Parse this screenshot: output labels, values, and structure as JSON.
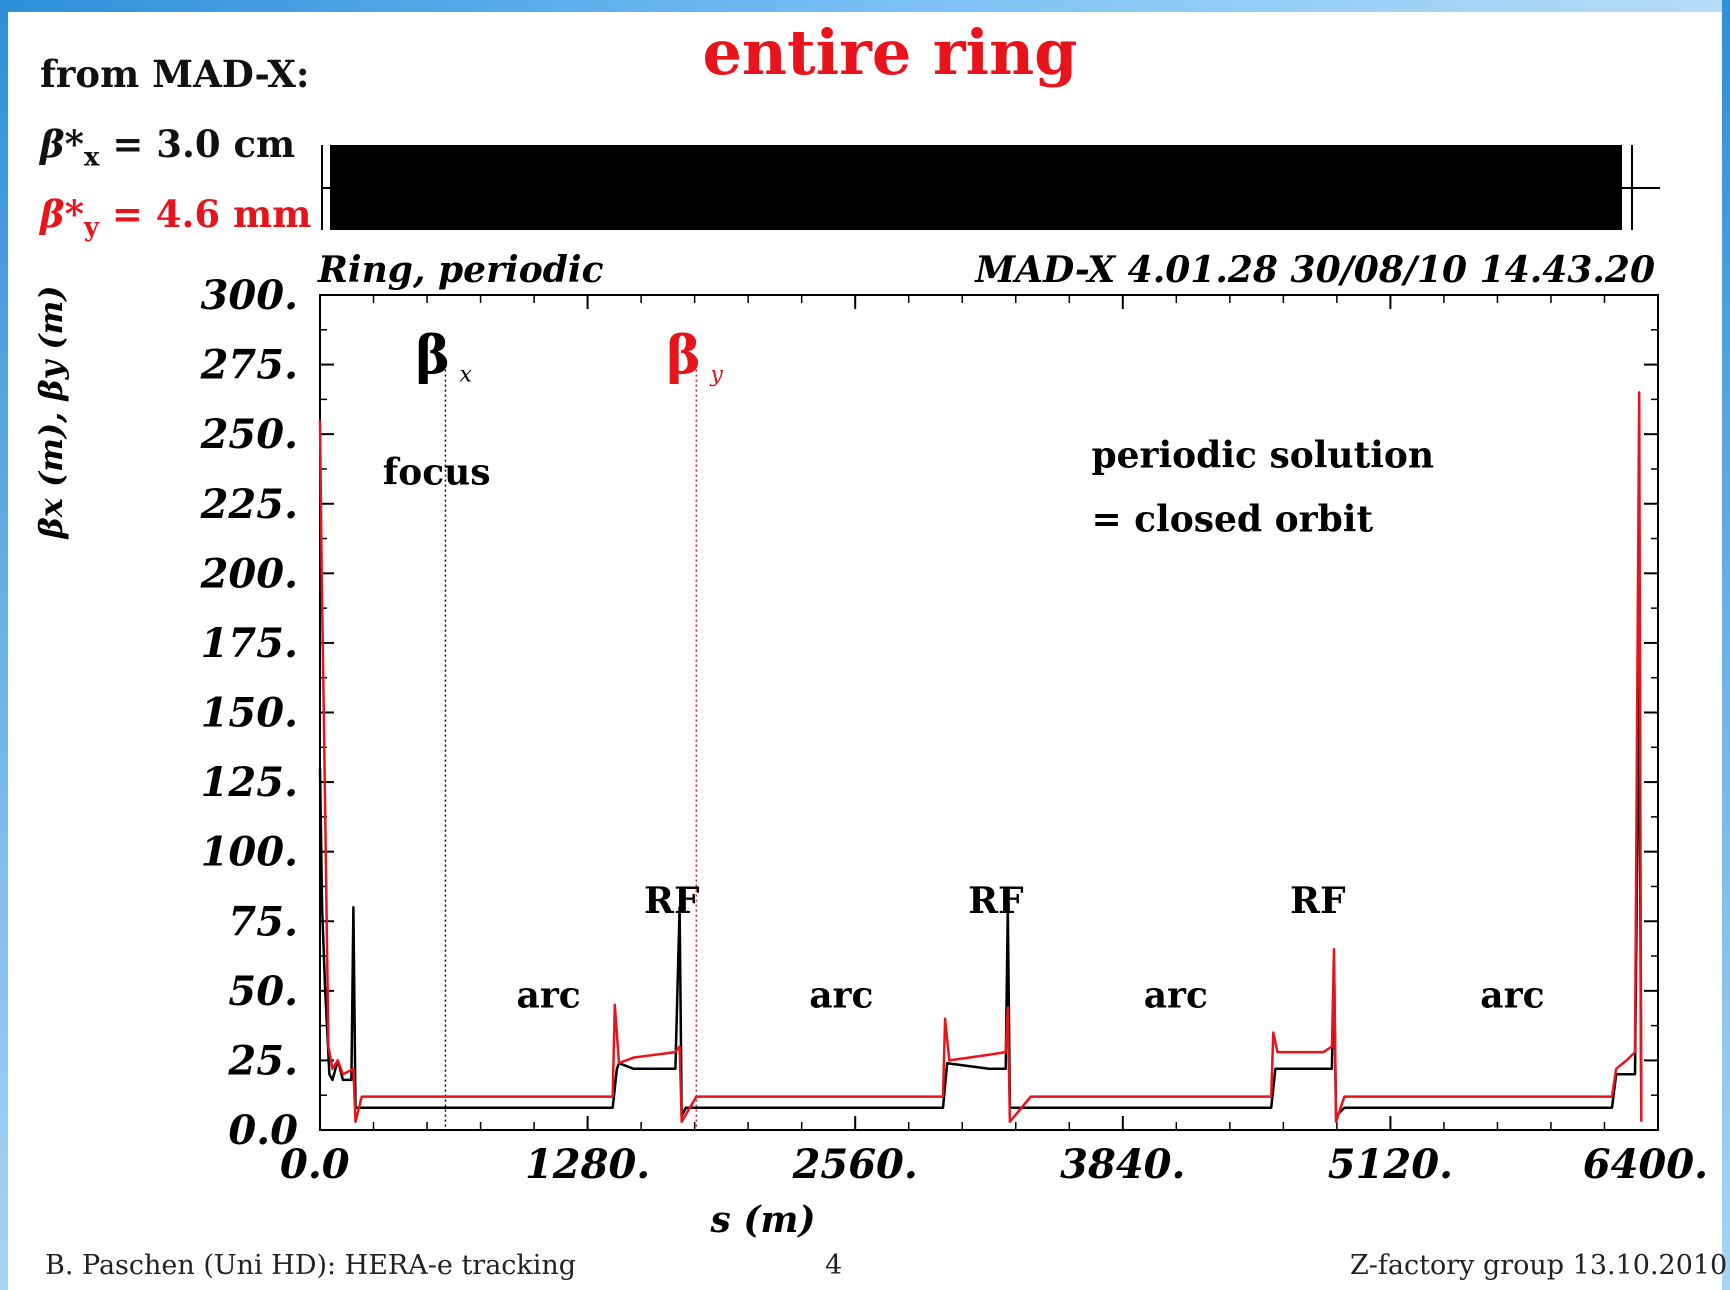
{
  "slide": {
    "title": "entire ring",
    "source_label": "from MAD-X:",
    "beta_x_label": "β*x = 3.0 cm",
    "beta_y_label": "β*y = 4.6 mm",
    "footer_left": "B. Paschen (Uni HD): HERA-e tracking",
    "footer_center": "4",
    "footer_right": "Z-factory group 13.10.2010",
    "colors": {
      "title": "#e8141c",
      "frame": "#2e8fd9"
    }
  },
  "chart_data": {
    "type": "line",
    "title": "Ring, periodic",
    "subtitle": "MAD-X 4.01.28  30/08/10 14.43.20",
    "xlabel": "s (m)",
    "ylabel": "βx (m), βy (m)",
    "xlim": [
      0,
      6400
    ],
    "ylim": [
      0,
      300
    ],
    "x_ticks": [
      "0.0",
      "1280.",
      "2560.",
      "3840.",
      "5120.",
      "6400."
    ],
    "y_ticks": [
      "0.0",
      "25.",
      "50.",
      "75.",
      "100.",
      "125.",
      "150.",
      "175.",
      "200.",
      "225.",
      "250.",
      "275.",
      "300."
    ],
    "grid": false,
    "series": [
      {
        "name": "βx",
        "color": "#000000",
        "x": [
          0,
          10,
          25,
          45,
          60,
          85,
          110,
          150,
          160,
          170,
          200,
          400,
          900,
          1400,
          1420,
          1430,
          1500,
          1700,
          1720,
          1730,
          1750,
          1800,
          2400,
          2980,
          3000,
          3200,
          3280,
          3290,
          3300,
          3350,
          4000,
          4550,
          4570,
          4800,
          4840,
          4850,
          4860,
          4900,
          5500,
          6180,
          6200,
          6290,
          6310,
          6320
        ],
        "y": [
          130,
          80,
          50,
          20,
          18,
          25,
          18,
          18,
          80,
          8,
          8,
          8,
          8,
          8,
          22,
          24,
          22,
          22,
          80,
          5,
          8,
          8,
          8,
          8,
          24,
          22,
          22,
          80,
          8,
          8,
          8,
          8,
          22,
          22,
          22,
          60,
          5,
          8,
          8,
          8,
          20,
          20,
          170,
          5
        ]
      },
      {
        "name": "βy",
        "color": "#e8141c",
        "x": [
          0,
          8,
          20,
          40,
          60,
          85,
          110,
          160,
          170,
          200,
          600,
          1000,
          1400,
          1410,
          1430,
          1500,
          1700,
          1720,
          1730,
          1800,
          2400,
          2980,
          2990,
          3010,
          3200,
          3280,
          3290,
          3300,
          3400,
          4000,
          4550,
          4560,
          4580,
          4800,
          4840,
          4850,
          4860,
          4900,
          5600,
          6180,
          6200,
          6250,
          6290,
          6310,
          6320
        ],
        "y": [
          255,
          200,
          140,
          30,
          22,
          25,
          20,
          22,
          3,
          12,
          12,
          12,
          12,
          45,
          24,
          26,
          28,
          30,
          3,
          12,
          12,
          12,
          40,
          25,
          27,
          28,
          44,
          3,
          12,
          12,
          12,
          35,
          28,
          28,
          30,
          65,
          3,
          12,
          12,
          12,
          22,
          25,
          28,
          265,
          3
        ]
      }
    ],
    "markers": [
      {
        "label": "β",
        "sub": "x",
        "color": "#000000",
        "x": 600
      },
      {
        "label": "β",
        "sub": "y",
        "color": "#e8141c",
        "x": 1800
      }
    ],
    "annotations": [
      {
        "text": "focus",
        "x": 300,
        "y": 232
      },
      {
        "text": "periodic solution",
        "x": 3690,
        "y": 238
      },
      {
        "text": "= closed orbit",
        "x": 3690,
        "y": 215
      },
      {
        "text": "RF",
        "x": 1550,
        "y": 78
      },
      {
        "text": "RF",
        "x": 3100,
        "y": 78
      },
      {
        "text": "RF",
        "x": 4640,
        "y": 78
      },
      {
        "text": "arc",
        "x": 940,
        "y": 44
      },
      {
        "text": "arc",
        "x": 2340,
        "y": 44
      },
      {
        "text": "arc",
        "x": 3940,
        "y": 44
      },
      {
        "text": "arc",
        "x": 5550,
        "y": 44
      }
    ]
  }
}
